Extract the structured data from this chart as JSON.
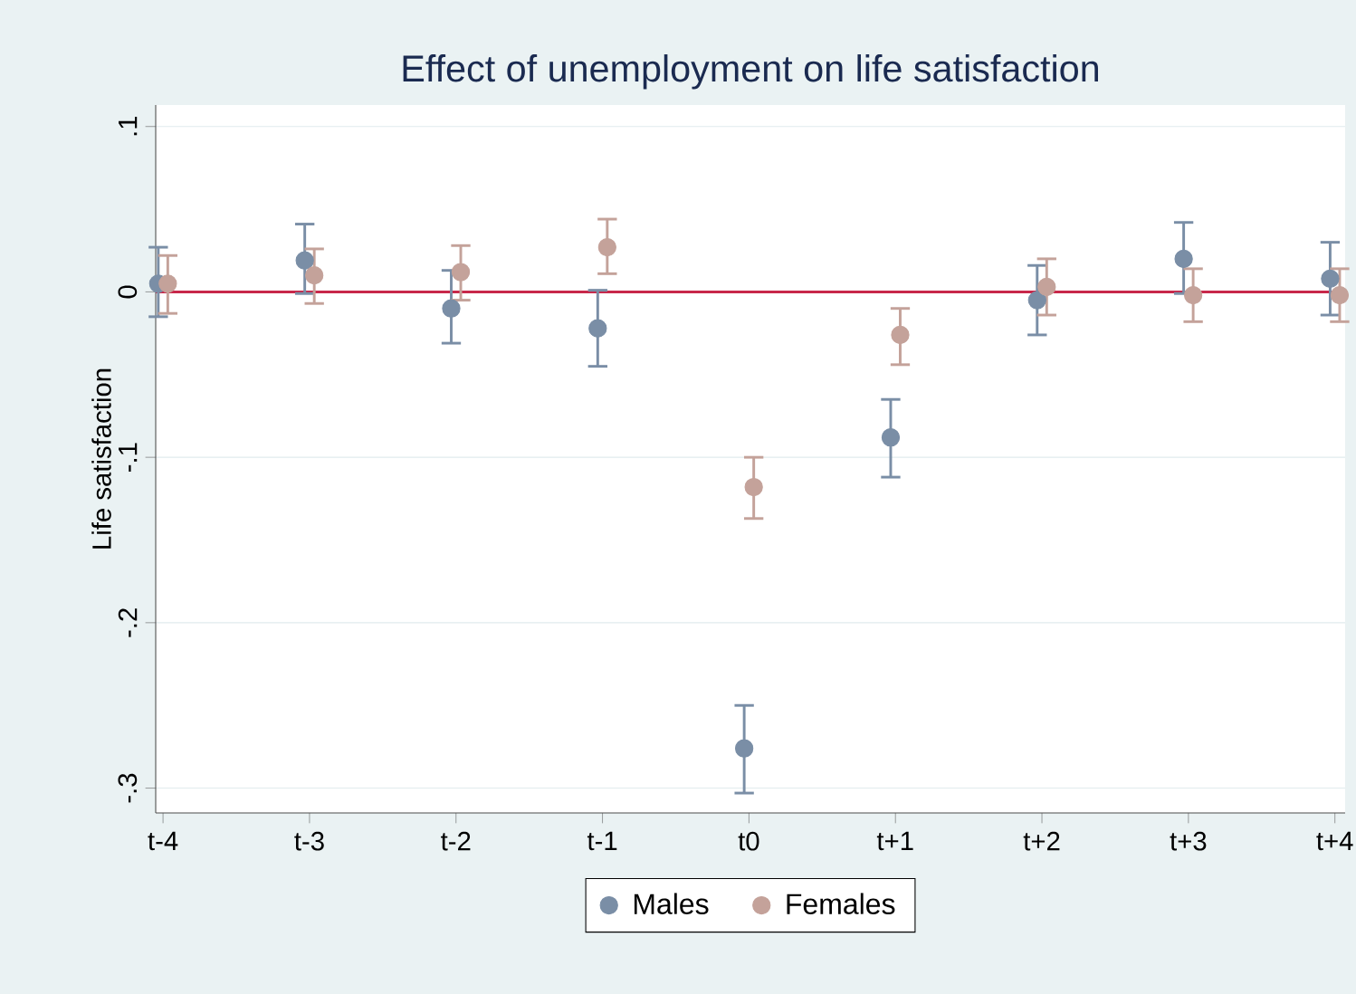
{
  "chart_data": {
    "type": "scatter",
    "title": "Effect of unemployment on life satisfaction",
    "ylabel": "Life satisfaction",
    "categories": [
      "t-4",
      "t-3",
      "t-2",
      "t-1",
      "t0",
      "t+1",
      "t+2",
      "t+3",
      "t+4"
    ],
    "series": [
      {
        "name": "Males",
        "color": "#7a8ea6",
        "values": [
          0.005,
          0.019,
          -0.01,
          -0.022,
          -0.276,
          -0.088,
          -0.005,
          0.02,
          0.008
        ],
        "errors": [
          [
            -0.015,
            0.027
          ],
          [
            -0.001,
            0.041
          ],
          [
            -0.031,
            0.013
          ],
          [
            -0.045,
            0.001
          ],
          [
            -0.303,
            -0.25
          ],
          [
            -0.112,
            -0.065
          ],
          [
            -0.026,
            0.016
          ],
          [
            -0.001,
            0.042
          ],
          [
            -0.014,
            0.03
          ]
        ]
      },
      {
        "name": "Females",
        "color": "#c4a29a",
        "values": [
          0.005,
          0.01,
          0.012,
          0.027,
          -0.118,
          -0.026,
          0.003,
          -0.002,
          -0.002
        ],
        "errors": [
          [
            -0.013,
            0.022
          ],
          [
            -0.007,
            0.026
          ],
          [
            -0.005,
            0.028
          ],
          [
            0.011,
            0.044
          ],
          [
            -0.137,
            -0.1
          ],
          [
            -0.044,
            -0.01
          ],
          [
            -0.014,
            0.02
          ],
          [
            -0.018,
            0.014
          ],
          [
            -0.018,
            0.014
          ]
        ]
      }
    ],
    "ylim": [
      -0.315,
      0.113
    ],
    "yticks": [
      {
        "value": 0.1,
        "label": ".1"
      },
      {
        "value": 0,
        "label": "0"
      },
      {
        "value": -0.1,
        "label": "-.1"
      },
      {
        "value": -0.2,
        "label": "-.2"
      },
      {
        "value": -0.3,
        "label": "-.3"
      }
    ],
    "ref_lines": [
      {
        "axis": "y",
        "value": 0,
        "color": "#c8284a"
      }
    ],
    "grid": "y",
    "legend": "bottom",
    "marker": "circle"
  }
}
